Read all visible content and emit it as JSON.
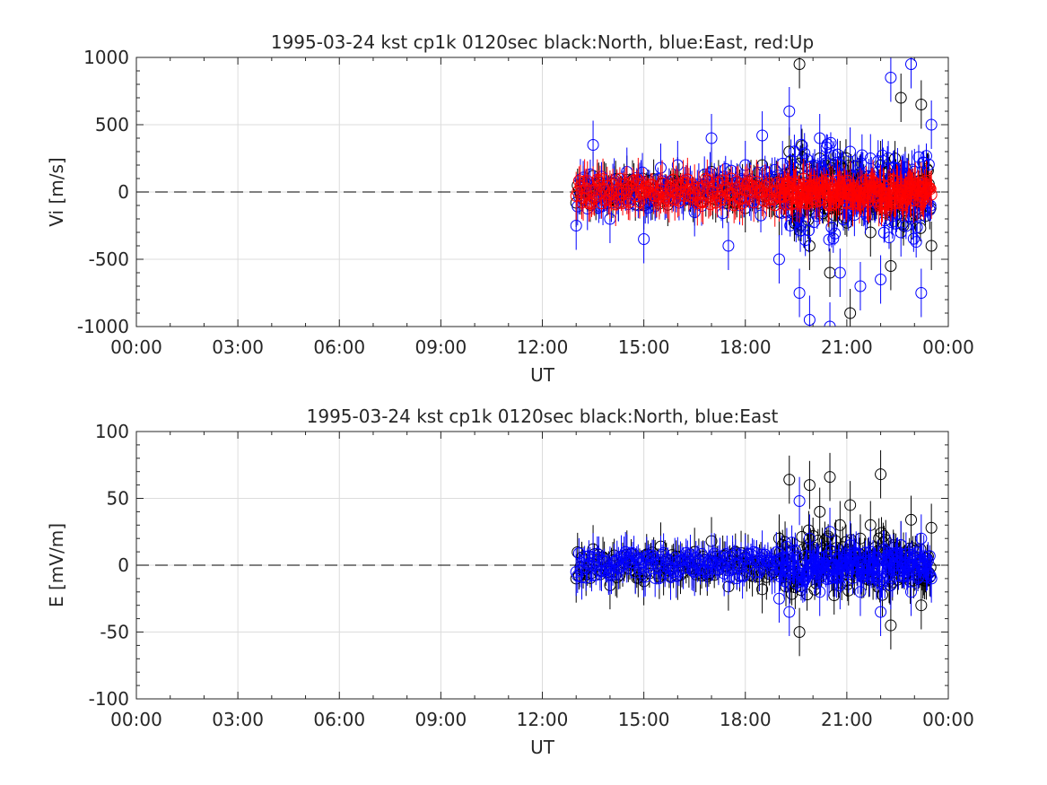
{
  "chart_data": [
    {
      "type": "scatter",
      "title": "1995-03-24 kst cp1k 0120sec black:North, blue:East, red:Up",
      "xlabel": "UT",
      "ylabel": "Vi [m/s]",
      "xlim": [
        "00:00",
        "24:00"
      ],
      "ylim": [
        -1000,
        1000
      ],
      "x_ticks": [
        "00:00",
        "03:00",
        "06:00",
        "09:00",
        "12:00",
        "15:00",
        "18:00",
        "21:00",
        "00:00"
      ],
      "y_ticks": [
        "-1000",
        "-500",
        "0",
        "500",
        "1000"
      ],
      "grid": true,
      "markers": "open circles with vertical error bars",
      "zero_line": "dashed",
      "series": [
        {
          "name": "North",
          "color": "#000000",
          "x_hours": [
            13.0,
            13.5,
            14.0,
            14.5,
            15.0,
            15.5,
            16.0,
            16.5,
            17.0,
            17.5,
            18.0,
            18.5,
            19.0,
            19.3,
            19.6,
            19.9,
            20.2,
            20.5,
            20.8,
            21.1,
            21.4,
            21.7,
            22.0,
            22.3,
            22.6,
            22.9,
            23.2,
            23.5
          ],
          "values": [
            -80,
            120,
            -40,
            90,
            -100,
            60,
            80,
            -70,
            150,
            30,
            -120,
            200,
            -150,
            300,
            950,
            -400,
            250,
            -600,
            200,
            -900,
            100,
            -300,
            200,
            -550,
            700,
            -200,
            650,
            -400
          ]
        },
        {
          "name": "East",
          "color": "#0000ff",
          "x_hours": [
            13.0,
            13.5,
            14.0,
            14.5,
            15.0,
            15.5,
            16.0,
            16.5,
            17.0,
            17.5,
            18.0,
            18.5,
            19.0,
            19.3,
            19.6,
            19.9,
            20.2,
            20.5,
            20.8,
            21.1,
            21.4,
            21.7,
            22.0,
            22.3,
            22.6,
            22.9,
            23.2,
            23.5
          ],
          "values": [
            -250,
            350,
            -200,
            150,
            -350,
            180,
            200,
            -150,
            400,
            -400,
            200,
            420,
            -500,
            600,
            -750,
            -950,
            400,
            -1000,
            -600,
            300,
            -700,
            250,
            -650,
            850,
            -300,
            950,
            -750,
            500
          ]
        },
        {
          "name": "Up",
          "color": "#ff0000",
          "x_hours": [
            13.0,
            13.5,
            14.0,
            14.5,
            15.0,
            15.5,
            16.0,
            16.5,
            17.0,
            17.5,
            18.0,
            18.5,
            19.0,
            19.3,
            19.6,
            19.9,
            20.2,
            20.5,
            20.8,
            21.1,
            21.4,
            21.7,
            22.0,
            22.3,
            22.6,
            22.9,
            23.2,
            23.5
          ],
          "values": [
            -30,
            10,
            -20,
            15,
            0,
            20,
            -10,
            25,
            5,
            -15,
            10,
            0,
            -40,
            60,
            -50,
            40,
            -60,
            30,
            -20,
            50,
            0,
            -30,
            20,
            -40,
            60,
            -10,
            40,
            -20
          ]
        }
      ]
    },
    {
      "type": "scatter",
      "title": "1995-03-24 kst cp1k 0120sec black:North, blue:East",
      "xlabel": "UT",
      "ylabel": "E [mV/m]",
      "xlim": [
        "00:00",
        "24:00"
      ],
      "ylim": [
        -100,
        100
      ],
      "x_ticks": [
        "00:00",
        "03:00",
        "06:00",
        "09:00",
        "12:00",
        "15:00",
        "18:00",
        "21:00",
        "00:00"
      ],
      "y_ticks": [
        "-100",
        "-50",
        "0",
        "50",
        "100"
      ],
      "grid": true,
      "markers": "open circles with vertical error bars",
      "zero_line": "dashed",
      "series": [
        {
          "name": "North",
          "color": "#000000",
          "x_hours": [
            13.0,
            13.5,
            14.0,
            14.5,
            15.0,
            15.5,
            16.0,
            16.5,
            17.0,
            17.5,
            18.0,
            18.5,
            19.0,
            19.3,
            19.6,
            19.9,
            20.2,
            20.5,
            20.8,
            21.1,
            21.4,
            21.7,
            22.0,
            22.3,
            22.6,
            22.9,
            23.2,
            23.5
          ],
          "values": [
            -10,
            12,
            -15,
            8,
            -12,
            14,
            -8,
            10,
            18,
            -16,
            6,
            -18,
            20,
            64,
            -50,
            60,
            40,
            66,
            30,
            45,
            20,
            30,
            68,
            -45,
            15,
            34,
            -30,
            28
          ]
        },
        {
          "name": "East",
          "color": "#0000ff",
          "x_hours": [
            13.0,
            13.5,
            14.0,
            14.5,
            15.0,
            15.5,
            16.0,
            16.5,
            17.0,
            17.5,
            18.0,
            18.5,
            19.0,
            19.3,
            19.6,
            19.9,
            20.2,
            20.5,
            20.8,
            21.1,
            21.4,
            21.7,
            22.0,
            22.3,
            22.6,
            22.9,
            23.2,
            23.5
          ],
          "values": [
            -5,
            6,
            -4,
            5,
            -6,
            4,
            3,
            -5,
            6,
            -4,
            5,
            8,
            -25,
            -35,
            48,
            20,
            -20,
            25,
            -15,
            15,
            -20,
            10,
            -35,
            -15,
            15,
            -20,
            20,
            -10
          ]
        }
      ]
    }
  ]
}
